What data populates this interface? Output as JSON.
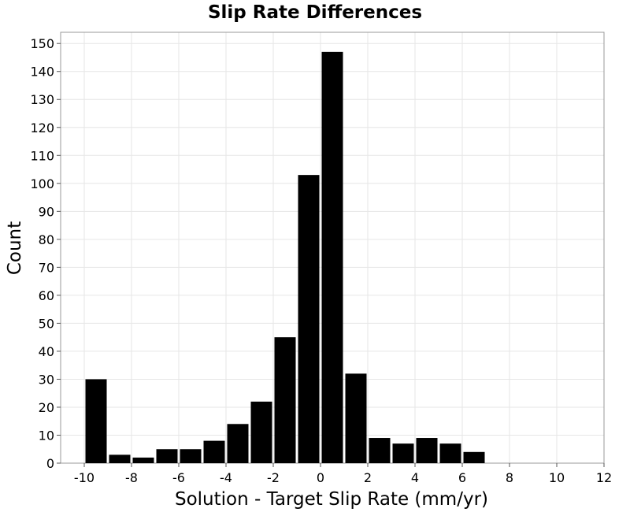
{
  "chart_data": {
    "type": "bar",
    "title": "Slip Rate Differences",
    "xlabel": "Solution - Target Slip Rate (mm/yr)",
    "ylabel": "Count",
    "xlim": [
      -11,
      12
    ],
    "ylim": [
      0,
      154
    ],
    "grid": true,
    "bar_width": 1,
    "bar_color": "#000000",
    "x": [
      -9.5,
      -8.5,
      -7.5,
      -6.5,
      -5.5,
      -4.5,
      -3.5,
      -2.5,
      -1.5,
      -0.5,
      0.5,
      1.5,
      2.5,
      3.5,
      4.5,
      5.5,
      6.5
    ],
    "values": [
      30,
      3,
      2,
      5,
      5,
      8,
      14,
      22,
      45,
      103,
      147,
      32,
      9,
      7,
      9,
      7,
      4
    ],
    "x_ticks": [
      -10,
      -8,
      -6,
      -4,
      -2,
      0,
      2,
      4,
      6,
      8,
      10,
      12
    ],
    "x_tick_labels": [
      "-10",
      "-8",
      "-6",
      "-4",
      "-2",
      "0",
      "2",
      "4",
      "6",
      "8",
      "10",
      "12"
    ],
    "y_ticks": [
      0,
      10,
      20,
      30,
      40,
      50,
      60,
      70,
      80,
      90,
      100,
      110,
      120,
      130,
      140,
      150
    ],
    "y_tick_labels": [
      "0",
      "10",
      "20",
      "30",
      "40",
      "50",
      "60",
      "70",
      "80",
      "90",
      "100",
      "110",
      "120",
      "130",
      "140",
      "150"
    ]
  }
}
